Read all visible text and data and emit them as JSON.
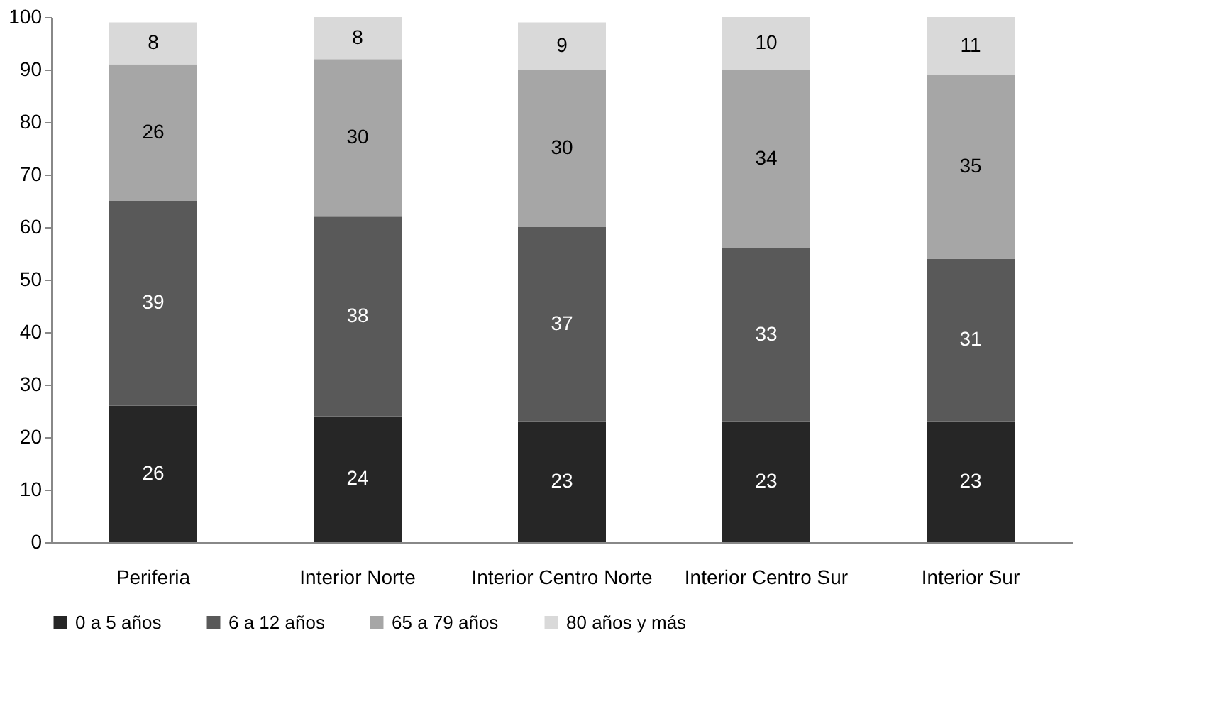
{
  "chart_data": {
    "type": "bar",
    "stacked": true,
    "data_labels": true,
    "legend": "bottom",
    "grid": false,
    "categories": [
      "Periferia",
      "Interior Norte",
      "Interior Centro Norte",
      "Interior Centro Sur",
      "Interior Sur"
    ],
    "ylim": [
      0,
      100
    ],
    "yticks": [
      0,
      10,
      20,
      30,
      40,
      50,
      60,
      70,
      80,
      90,
      100
    ],
    "series": [
      {
        "name": "0 a 5 años",
        "color": "#262626",
        "values": [
          26,
          24,
          23,
          23,
          23
        ]
      },
      {
        "name": "6 a 12 años",
        "color": "#595959",
        "values": [
          39,
          38,
          37,
          33,
          31
        ]
      },
      {
        "name": "65 a 79 años",
        "color": "#a6a6a6",
        "values": [
          26,
          30,
          30,
          34,
          35
        ]
      },
      {
        "name": "80 años y más",
        "color": "#d9d9d9",
        "values": [
          8,
          8,
          9,
          10,
          11
        ]
      }
    ]
  }
}
